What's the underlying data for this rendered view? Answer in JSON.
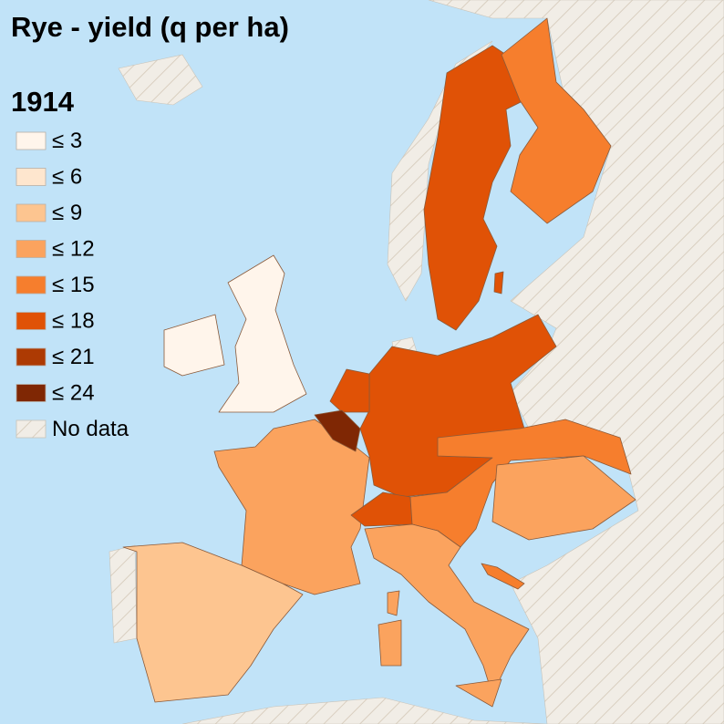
{
  "title": "Rye - yield (q per ha)",
  "year": "1914",
  "legend": [
    {
      "label": "≤ 3",
      "color": "#fff5eb"
    },
    {
      "label": "≤ 6",
      "color": "#fee6ce"
    },
    {
      "label": "≤ 9",
      "color": "#fdc590"
    },
    {
      "label": "≤ 12",
      "color": "#fba35e"
    },
    {
      "label": "≤ 15",
      "color": "#f67e2d"
    },
    {
      "label": "≤ 18",
      "color": "#e05206"
    },
    {
      "label": "≤ 21",
      "color": "#ad3a03"
    },
    {
      "label": "≤ 24",
      "color": "#7f2704"
    }
  ],
  "no_data": {
    "label": "No data"
  }
}
